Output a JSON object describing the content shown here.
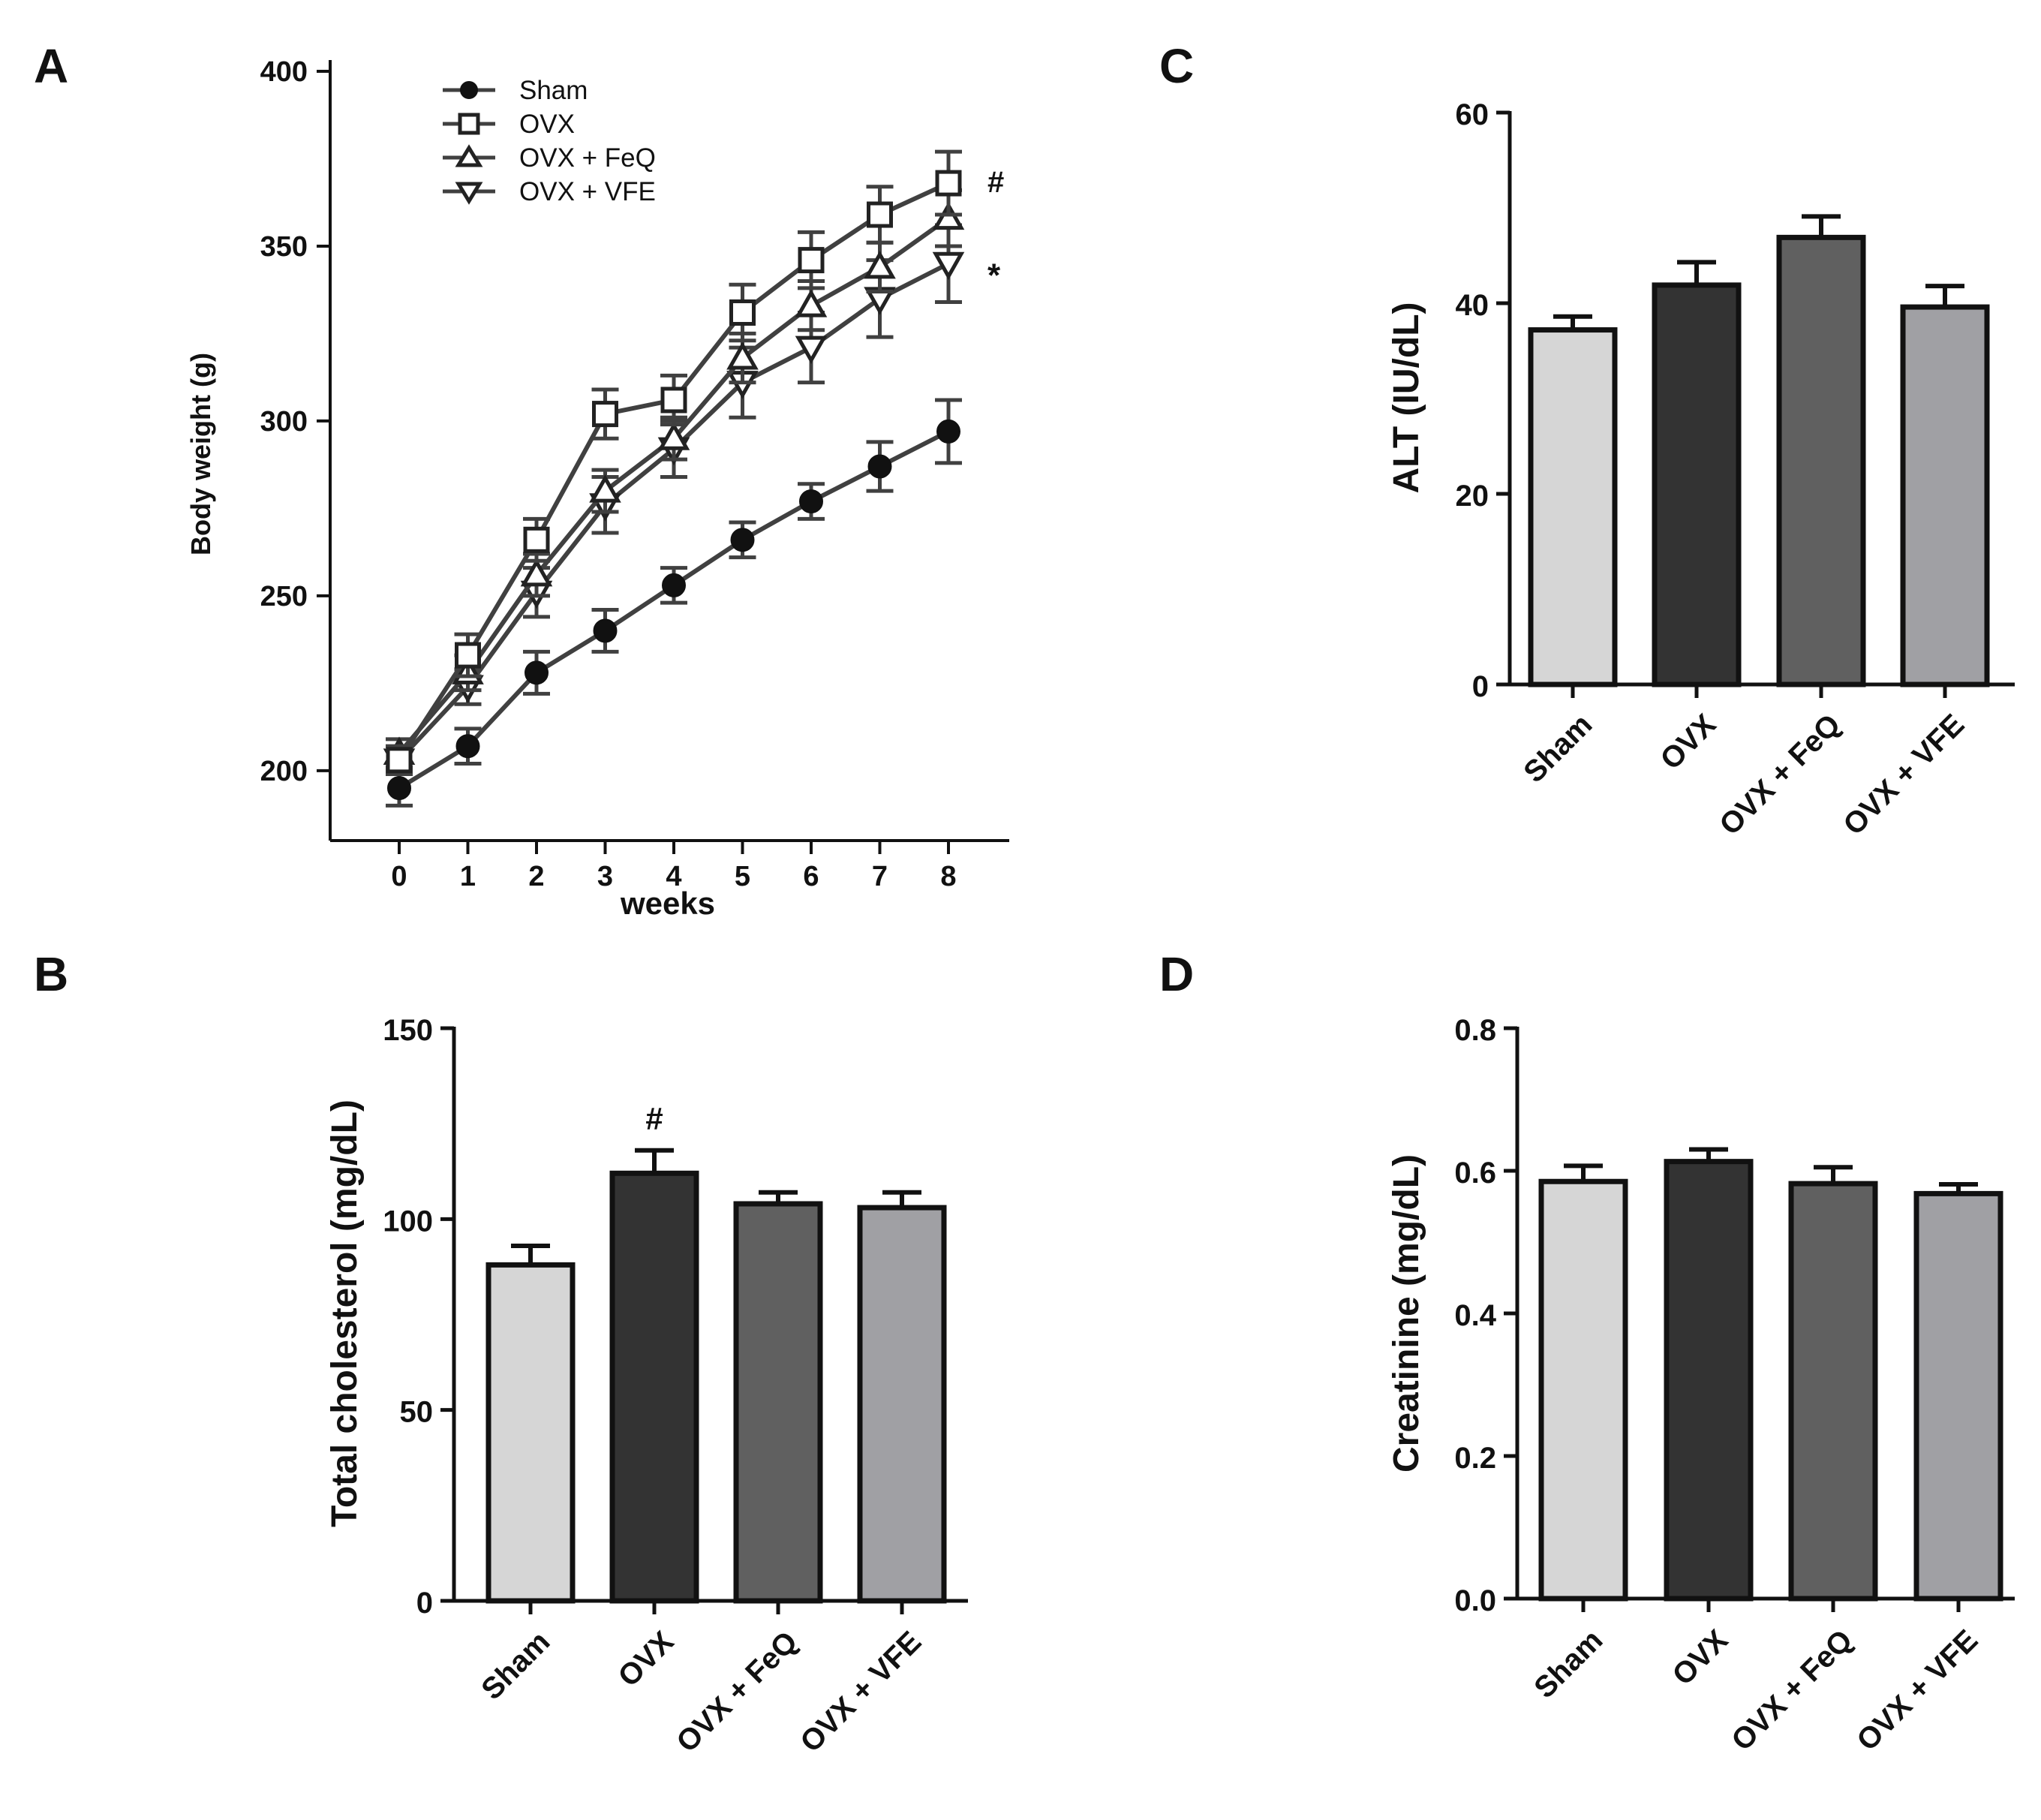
{
  "panel_labels": [
    "A",
    "B",
    "C",
    "D"
  ],
  "colors": {
    "Sham": "#d6d6d6",
    "OVX": "#333333",
    "OVX + FeQ": "#606060",
    "OVX + VFE": "#a0a0a4",
    "line": "#404040",
    "axis": "#111111"
  },
  "chart_data": [
    {
      "panel": "A",
      "type": "line",
      "title": "",
      "xlabel": "weeks",
      "ylabel": "Body weight (g)",
      "x": [
        0,
        1,
        2,
        3,
        4,
        5,
        6,
        7,
        8
      ],
      "xlim": [
        -1,
        8.9
      ],
      "ylim": [
        180,
        400
      ],
      "yticks": [
        200,
        250,
        300,
        350,
        400
      ],
      "legend": {
        "position": "top-left",
        "entries": [
          "Sham",
          "OVX",
          "OVX + FeQ",
          "OVX + VFE"
        ]
      },
      "series": [
        {
          "name": "Sham",
          "marker": "filled-circle",
          "values": [
            195,
            207,
            228,
            240,
            253,
            266,
            277,
            287,
            297
          ],
          "errors": [
            5,
            5,
            6,
            6,
            5,
            5,
            5,
            7,
            9
          ]
        },
        {
          "name": "OVX",
          "marker": "open-square",
          "values": [
            203,
            233,
            266,
            302,
            306,
            331,
            346,
            359,
            368
          ],
          "errors": [
            4,
            6,
            6,
            7,
            7,
            8,
            8,
            8,
            9
          ]
        },
        {
          "name": "OVX + FeQ",
          "marker": "open-triangle-up",
          "values": [
            205,
            228,
            256,
            280,
            295,
            318,
            333,
            344,
            358
          ],
          "errors": [
            4,
            5,
            6,
            6,
            6,
            7,
            7,
            7,
            8
          ]
        },
        {
          "name": "OVX + VFE",
          "marker": "open-triangle-down",
          "values": [
            203,
            224,
            251,
            276,
            292,
            311,
            321,
            335,
            345
          ],
          "errors": [
            4,
            5,
            7,
            8,
            8,
            10,
            10,
            11,
            11
          ]
        }
      ],
      "annotations": [
        {
          "text": "#",
          "series": "OVX"
        },
        {
          "text": "*",
          "series": "OVX + VFE"
        }
      ]
    },
    {
      "panel": "B",
      "type": "bar",
      "title": "",
      "xlabel": "",
      "ylabel": "Total cholesterol (mg/dL)",
      "categories": [
        "Sham",
        "OVX",
        "OVX + FeQ",
        "OVX + VFE"
      ],
      "values": [
        88,
        112,
        104,
        103
      ],
      "errors": [
        5,
        6,
        3,
        4
      ],
      "ylim": [
        0,
        150
      ],
      "yticks": [
        0,
        50,
        100,
        150
      ],
      "tick_format": "int",
      "annotations": [
        {
          "text": "#",
          "category": "OVX"
        }
      ]
    },
    {
      "panel": "C",
      "type": "bar",
      "title": "",
      "xlabel": "",
      "ylabel": "ALT (IU/dL)",
      "categories": [
        "Sham",
        "OVX",
        "OVX + FeQ",
        "OVX + VFE"
      ],
      "values": [
        37.2,
        41.9,
        46.9,
        39.6
      ],
      "errors": [
        1.4,
        2.4,
        2.2,
        2.2
      ],
      "ylim": [
        0,
        60
      ],
      "yticks": [
        0,
        20,
        40,
        60
      ],
      "tick_format": "int",
      "annotations": []
    },
    {
      "panel": "D",
      "type": "bar",
      "title": "",
      "xlabel": "",
      "ylabel": "Creatinine (mg/dL)",
      "categories": [
        "Sham",
        "OVX",
        "OVX + FeQ",
        "OVX + VFE"
      ],
      "values": [
        0.585,
        0.613,
        0.582,
        0.568
      ],
      "errors": [
        0.022,
        0.017,
        0.023,
        0.013
      ],
      "ylim": [
        0,
        0.8
      ],
      "yticks": [
        0.0,
        0.2,
        0.4,
        0.6,
        0.8
      ],
      "tick_format": "1dp",
      "annotations": []
    }
  ]
}
